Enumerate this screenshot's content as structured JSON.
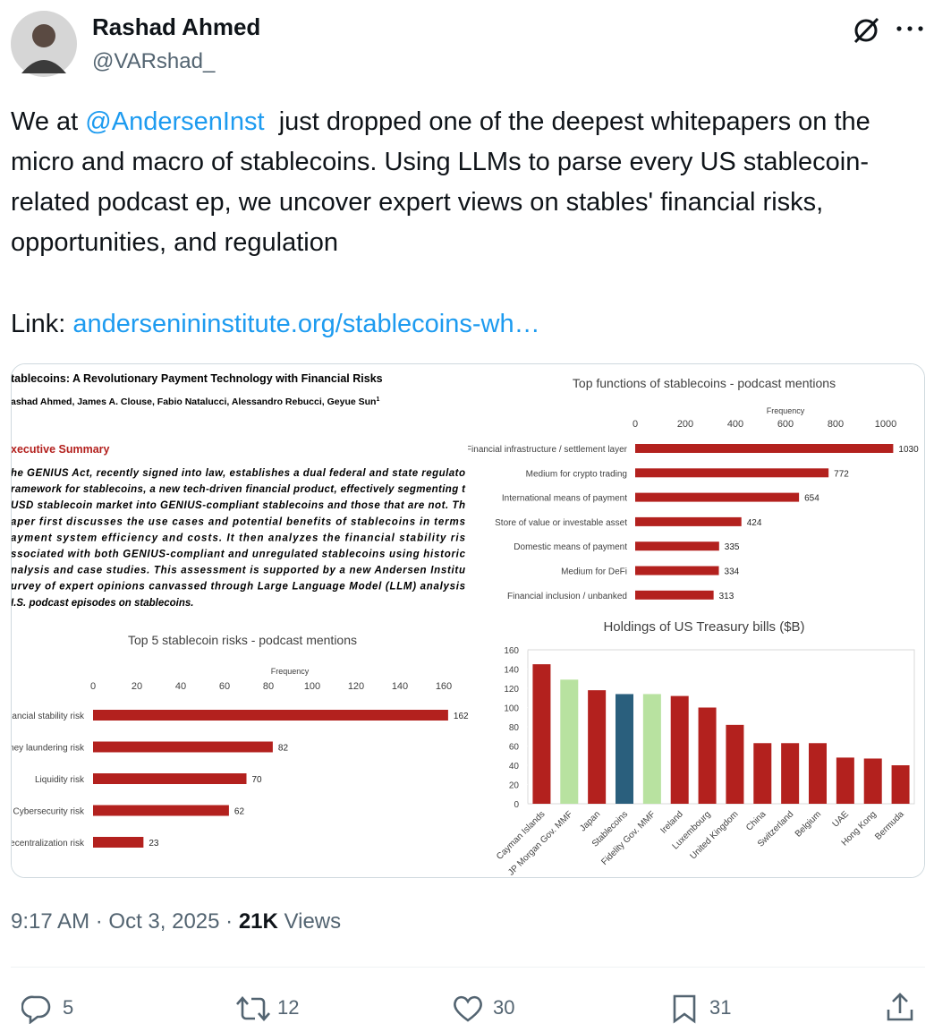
{
  "tweet": {
    "author_name": "Rashad Ahmed",
    "author_handle": "@VARshad_",
    "text_before": "We at ",
    "mention": "@AndersenInst",
    "text_after": "  just dropped one of the deepest whitepapers on the micro and macro of stablecoins. Using LLMs to parse every US stablecoin-related podcast ep, we uncover expert views on stables' financial risks, opportunities, and regulation",
    "link_label": "Link: ",
    "link": "andersenininstitute.org/stablecoins-wh…",
    "time": "9:17 AM",
    "separator": "·",
    "date": "Oct 3, 2025",
    "views_count": "21K",
    "views_label": "Views",
    "replies": 5,
    "retweets": 12,
    "likes": 30,
    "bookmarks": 31
  },
  "paper": {
    "title": "tablecoins: A Revolutionary Payment Technology with Financial Risks",
    "authors": "ashad Ahmed, James A. Clouse, Fabio Natalucci, Alessandro Rebucci, Geyue Sun",
    "footnote_mark": "1",
    "section": "xecutive Summary",
    "lines": [
      "he GENIUS Act, recently signed into law, establishes a dual federal and state regulato",
      "ramework for stablecoins, a new tech-driven financial product, effectively segmenting t",
      "USD stablecoin market into GENIUS-compliant stablecoins and those that are not. Th",
      "aper first discusses the use cases and potential benefits of stablecoins in terms",
      "ayment system efficiency and costs. It then analyzes the financial stability ris",
      "ssociated with both GENIUS-compliant and unregulated stablecoins using historic",
      "nalysis and case studies. This assessment is supported by a new Andersen Institu",
      "urvey of expert opinions canvassed through Large Language Model (LLM) analysis",
      "I.S. podcast episodes on stablecoins."
    ]
  },
  "chart_data": [
    {
      "type": "hbar",
      "title": "Top functions of stablecoins - podcast mentions",
      "xlabel": "Frequency",
      "categories": [
        "Financial infrastructure / settlement layer",
        "Medium for crypto trading",
        "International means of payment",
        "Store of value or investable asset",
        "Domestic means of payment",
        "Medium for DeFi",
        "Financial inclusion / unbanked"
      ],
      "values": [
        1030,
        772,
        654,
        424,
        335,
        334,
        313
      ],
      "color": "#b3211e",
      "xlim": [
        0,
        1060
      ],
      "xticks": [
        0,
        200,
        400,
        600,
        800,
        1000
      ]
    },
    {
      "type": "hbar",
      "title": "Top 5 stablecoin risks - podcast mentions",
      "xlabel": "Frequency",
      "categories": [
        "Financial stability risk",
        "Money laundering risk",
        "Liquidity risk",
        "Cybersecurity risk",
        "Decentralization risk"
      ],
      "values": [
        162,
        82,
        70,
        62,
        23
      ],
      "color": "#b3211e",
      "xlim": [
        0,
        170
      ],
      "xticks": [
        0,
        20,
        40,
        60,
        80,
        100,
        120,
        140,
        160
      ]
    },
    {
      "type": "bar",
      "title": "Holdings of US Treasury bills ($B)",
      "categories": [
        "Cayman Islands",
        "JP Morgan Gov. MMF",
        "Japan",
        "Stablecoins",
        "Fidelity Gov. MMF",
        "Ireland",
        "Luxembourg",
        "United Kingdom",
        "China",
        "Switzerland",
        "Belgium",
        "UAE",
        "Hong Kong",
        "Bermuda"
      ],
      "values": [
        145,
        129,
        118,
        114,
        114,
        112,
        100,
        82,
        63,
        63,
        63,
        48,
        47,
        40
      ],
      "colors": [
        "#b3211e",
        "#b8e2a0",
        "#b3211e",
        "#2a5f7d",
        "#b8e2a0",
        "#b3211e",
        "#b3211e",
        "#b3211e",
        "#b3211e",
        "#b3211e",
        "#b3211e",
        "#b3211e",
        "#b3211e",
        "#b3211e"
      ],
      "ylim": [
        0,
        160
      ],
      "yticks": [
        0,
        20,
        40,
        60,
        80,
        100,
        120,
        140,
        160
      ]
    }
  ]
}
